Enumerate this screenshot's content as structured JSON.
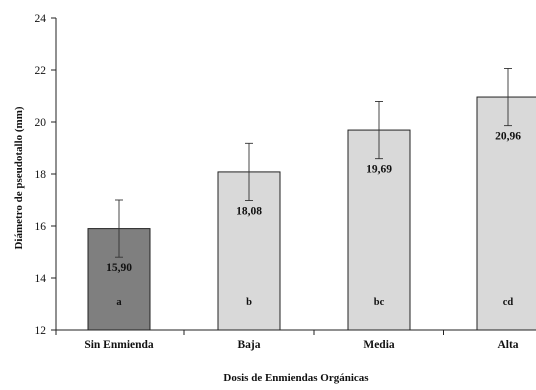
{
  "chart_data": {
    "type": "bar",
    "title": "",
    "xlabel": "Dosis de Enmiendas Orgánicas",
    "ylabel": "Diámetro de pseudotallo (mm)",
    "ylim": [
      12,
      24
    ],
    "yticks": [
      12,
      14,
      16,
      18,
      20,
      22,
      24
    ],
    "grid": false,
    "legend": "none",
    "categories": [
      "Sin Enmienda",
      "Baja",
      "Media",
      "Alta"
    ],
    "values": [
      15.9,
      18.08,
      19.69,
      20.96
    ],
    "value_labels": [
      "15,90",
      "18,08",
      "19,69",
      "20,96"
    ],
    "errors": [
      1.1,
      1.1,
      1.1,
      1.1
    ],
    "letters": [
      "a",
      "b",
      "bc",
      "cd"
    ],
    "bar_colors": [
      "#7f7f7f",
      "#d9d9d9",
      "#d9d9d9",
      "#d9d9d9"
    ]
  }
}
